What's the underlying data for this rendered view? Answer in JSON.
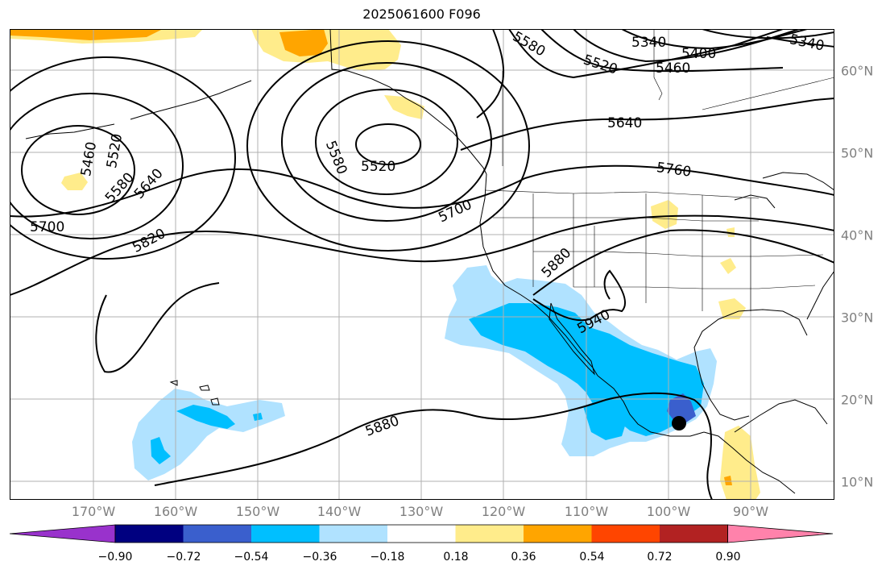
{
  "title": "2025061600 F096",
  "lon_labels": [
    "170°W",
    "160°W",
    "150°W",
    "140°W",
    "130°W",
    "120°W",
    "110°W",
    "100°W",
    "90°W"
  ],
  "lat_labels": [
    "60°N",
    "50°N",
    "40°N",
    "30°N",
    "20°N",
    "10°N"
  ],
  "contour_labels": [
    "5340",
    "5340",
    "5400",
    "5460",
    "5520",
    "5580",
    "5640",
    "5760",
    "5700",
    "5880",
    "5940",
    "5880",
    "5820",
    "5700",
    "5640",
    "5580",
    "5520",
    "5460",
    "5580",
    "5520"
  ],
  "colorbar": {
    "ticks": [
      "−0.90",
      "−0.72",
      "−0.54",
      "−0.36",
      "−0.18",
      "0.18",
      "0.36",
      "0.54",
      "0.72",
      "0.90"
    ],
    "colors": [
      "#9932cc",
      "#000080",
      "#3a5fcd",
      "#00bfff",
      "#b0e2ff",
      "#ffffff",
      "#ffec8b",
      "#ffa500",
      "#ff4500",
      "#b22222",
      "#ff82ab"
    ]
  },
  "colors": {
    "land_line": "#000000",
    "grid": "#b0b0b0",
    "contour": "#000000",
    "marker": "#000000"
  }
}
